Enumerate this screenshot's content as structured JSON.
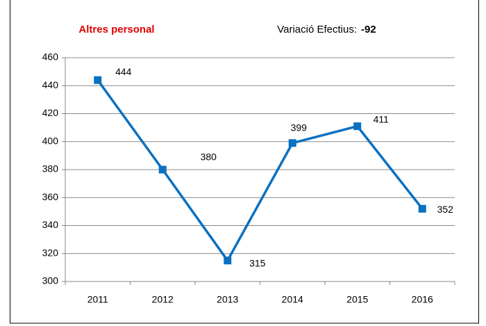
{
  "chart_data": {
    "type": "line",
    "title": "Altres personal",
    "annotation": {
      "label": "Variació Efectius:",
      "value": -92
    },
    "categories": [
      "2011",
      "2012",
      "2013",
      "2014",
      "2015",
      "2016"
    ],
    "series": [
      {
        "name": "Altres personal",
        "color": "#0a70c0",
        "values": [
          444,
          380,
          315,
          399,
          411,
          352
        ]
      }
    ],
    "ylim": [
      300,
      460
    ],
    "yticks": [
      300,
      320,
      340,
      360,
      380,
      400,
      420,
      440,
      460
    ],
    "grid": true
  }
}
